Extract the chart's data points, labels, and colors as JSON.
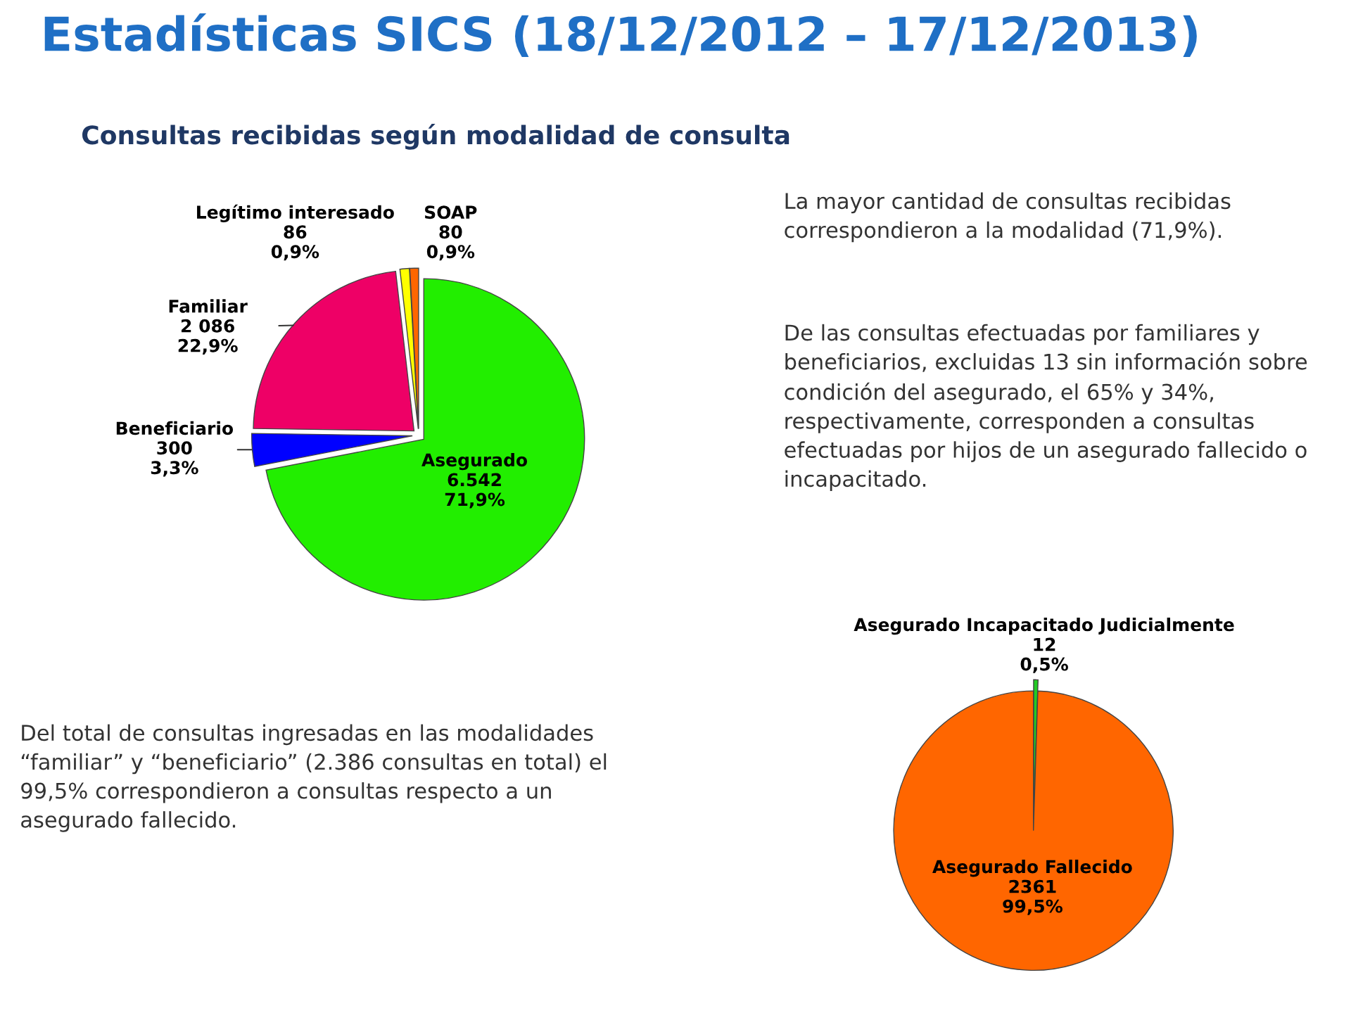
{
  "chart_data": [
    {
      "type": "pie",
      "title": "Estadísticas SICS (18/12/2012 – 17/12/2013)",
      "subtitle": "Consultas recibidas según modalidad de consulta",
      "categories": [
        "Asegurado",
        "Beneficiario",
        "Familiar",
        "Legítimo interesado",
        "SOAP"
      ],
      "values": [
        6542,
        300,
        2086,
        86,
        80
      ],
      "value_labels": [
        "6.542\n71,9%",
        "300\n3,3%",
        "2 086\n22,9%",
        "86\n0,9%",
        "80\n0,9%"
      ],
      "colors": [
        "#22ee00",
        "#0000ff",
        "#ee0066",
        "#ffff00",
        "#ff6600"
      ],
      "annotations": [
        "La mayor cantidad de consultas recibidas correspondieron a la modalidad (71,9%).",
        "De las consultas efectuadas por familiares y beneficiarios, excluidas 13 sin información sobre condición del asegurado, el 65% y 34%, respectivamente, corresponden a consultas efectuadas por hijos de un asegurado fallecido o incapacitado."
      ]
    },
    {
      "type": "pie",
      "categories": [
        "Asegurado Incapacitado Judicialmente",
        "Asegurado Fallecido"
      ],
      "values": [
        12,
        2361
      ],
      "value_labels": [
        "12\n0,5%",
        "2361\n99,5%"
      ],
      "colors": [
        "#22cc22",
        "#ff6600"
      ],
      "annotations": [
        "Del total de consultas ingresadas en las modalidades “familiar” y “beneficiario” (2.386 consultas en total) el 99,5% correspondieron a consultas respecto a un asegurado fallecido."
      ]
    }
  ]
}
